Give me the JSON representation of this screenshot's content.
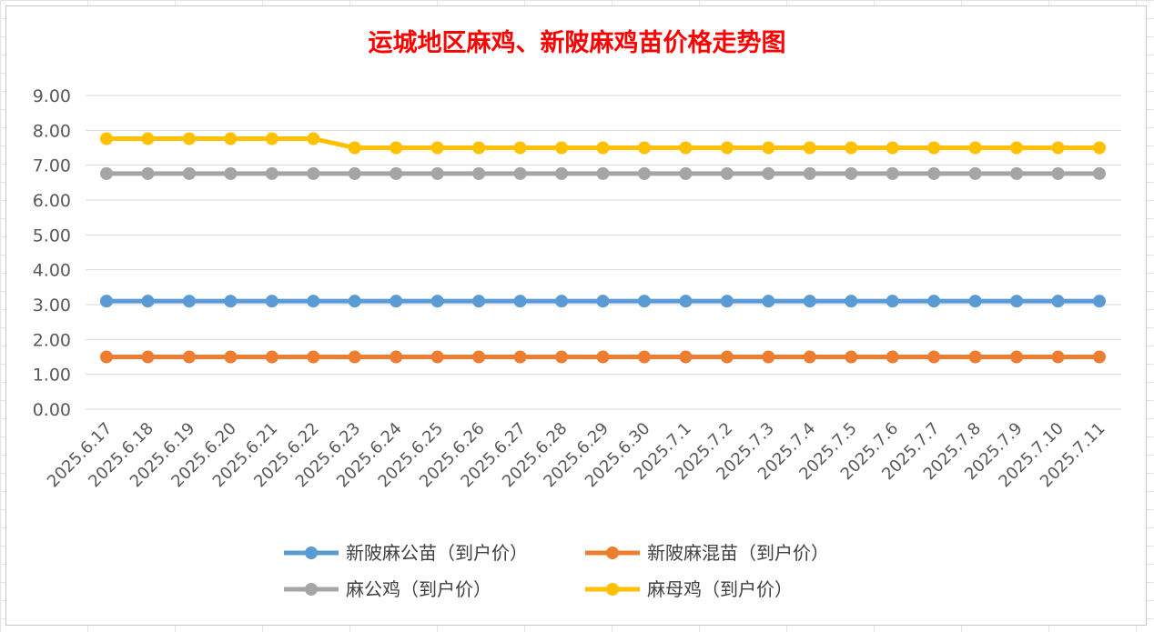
{
  "chart_data": {
    "type": "line",
    "title": "运城地区麻鸡、新陂麻鸡苗价格走势图",
    "xlabel": "",
    "ylabel": "",
    "ylim": [
      0,
      9
    ],
    "yticks": [
      "0.00",
      "1.00",
      "2.00",
      "3.00",
      "4.00",
      "5.00",
      "6.00",
      "7.00",
      "8.00",
      "9.00"
    ],
    "grid": true,
    "legend_position": "bottom",
    "categories": [
      "2025.6.17",
      "2025.6.18",
      "2025.6.19",
      "2025.6.20",
      "2025.6.21",
      "2025.6.22",
      "2025.6.23",
      "2025.6.24",
      "2025.6.25",
      "2025.6.26",
      "2025.6.27",
      "2025.6.28",
      "2025.6.29",
      "2025.6.30",
      "2025.7.1",
      "2025.7.2",
      "2025.7.3",
      "2025.7.4",
      "2025.7.5",
      "2025.7.6",
      "2025.7.7",
      "2025.7.8",
      "2025.7.9",
      "2025.7.10",
      "2025.7.11"
    ],
    "series": [
      {
        "name": "新陂麻公苗（到户价）",
        "color": "#5b9bd5",
        "values": [
          3.1,
          3.1,
          3.1,
          3.1,
          3.1,
          3.1,
          3.1,
          3.1,
          3.1,
          3.1,
          3.1,
          3.1,
          3.1,
          3.1,
          3.1,
          3.1,
          3.1,
          3.1,
          3.1,
          3.1,
          3.1,
          3.1,
          3.1,
          3.1,
          3.1
        ]
      },
      {
        "name": "新陂麻混苗（到户价）",
        "color": "#ed7d31",
        "values": [
          1.5,
          1.5,
          1.5,
          1.5,
          1.5,
          1.5,
          1.5,
          1.5,
          1.5,
          1.5,
          1.5,
          1.5,
          1.5,
          1.5,
          1.5,
          1.5,
          1.5,
          1.5,
          1.5,
          1.5,
          1.5,
          1.5,
          1.5,
          1.5,
          1.5
        ]
      },
      {
        "name": "麻公鸡（到户价）",
        "color": "#a5a5a5",
        "values": [
          6.76,
          6.76,
          6.76,
          6.76,
          6.76,
          6.76,
          6.76,
          6.76,
          6.76,
          6.76,
          6.76,
          6.76,
          6.76,
          6.76,
          6.76,
          6.76,
          6.76,
          6.76,
          6.76,
          6.76,
          6.76,
          6.76,
          6.76,
          6.76,
          6.76
        ]
      },
      {
        "name": "麻母鸡（到户价）",
        "color": "#ffc000",
        "values": [
          7.76,
          7.76,
          7.76,
          7.76,
          7.76,
          7.76,
          7.5,
          7.5,
          7.5,
          7.5,
          7.5,
          7.5,
          7.5,
          7.5,
          7.5,
          7.5,
          7.5,
          7.5,
          7.5,
          7.5,
          7.5,
          7.5,
          7.5,
          7.5,
          7.5
        ]
      }
    ]
  }
}
